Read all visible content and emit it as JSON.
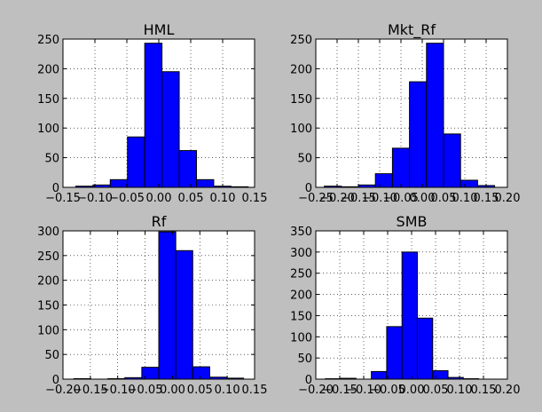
{
  "chart_data": [
    {
      "type": "bar",
      "title": "HML",
      "bin_edges": [
        -0.13,
        -0.103,
        -0.076,
        -0.049,
        -0.022,
        0.005,
        0.032,
        0.059,
        0.086,
        0.113,
        0.14
      ],
      "values": [
        2,
        4,
        13,
        85,
        243,
        195,
        62,
        13,
        2,
        1
      ],
      "xlim": [
        -0.15,
        0.15
      ],
      "ylim": [
        0,
        250
      ],
      "xticks": [
        "−0.15",
        "−0.10",
        "−0.05",
        "0.00",
        "0.05",
        "0.10",
        "0.15"
      ],
      "yticks": [
        "0",
        "50",
        "100",
        "150",
        "200",
        "250"
      ],
      "xtick_values": [
        -0.15,
        -0.1,
        -0.05,
        0.0,
        0.05,
        0.1,
        0.15
      ],
      "ytick_values": [
        0,
        50,
        100,
        150,
        200,
        250
      ],
      "grid": true,
      "bar_color": "#0000ff"
    },
    {
      "type": "bar",
      "title": "Mkt_Rf",
      "bin_edges": [
        -0.23,
        -0.19,
        -0.15,
        -0.11,
        -0.07,
        -0.03,
        0.01,
        0.05,
        0.09,
        0.13,
        0.17
      ],
      "values": [
        2,
        1,
        4,
        23,
        66,
        178,
        243,
        90,
        12,
        3
      ],
      "xlim": [
        -0.25,
        0.2
      ],
      "ylim": [
        0,
        250
      ],
      "xticks": [
        "−0.25",
        "−0.20",
        "−0.15",
        "−0.10",
        "−0.05",
        "0.00",
        "0.05",
        "0.10",
        "0.15",
        "0.20"
      ],
      "yticks": [
        "0",
        "50",
        "100",
        "150",
        "200",
        "250"
      ],
      "xtick_values": [
        -0.25,
        -0.2,
        -0.15,
        -0.1,
        -0.05,
        0.0,
        0.05,
        0.1,
        0.15,
        0.2
      ],
      "ytick_values": [
        0,
        50,
        100,
        150,
        200,
        250
      ],
      "grid": true,
      "bar_color": "#0000ff"
    },
    {
      "type": "bar",
      "title": "Rf",
      "bin_edges": [
        -0.18,
        -0.149,
        -0.118,
        -0.087,
        -0.056,
        -0.025,
        0.006,
        0.037,
        0.068,
        0.099,
        0.13
      ],
      "values": [
        1,
        0,
        1,
        3,
        24,
        298,
        260,
        25,
        4,
        2
      ],
      "xlim": [
        -0.2,
        0.15
      ],
      "ylim": [
        0,
        300
      ],
      "xticks": [
        "−0.20",
        "−0.15",
        "−0.10",
        "−0.05",
        "0.00",
        "0.05",
        "0.10",
        "0.15"
      ],
      "yticks": [
        "0",
        "50",
        "100",
        "150",
        "200",
        "250",
        "300"
      ],
      "xtick_values": [
        -0.2,
        -0.15,
        -0.1,
        -0.05,
        0.0,
        0.05,
        0.1,
        0.15
      ],
      "ytick_values": [
        0,
        50,
        100,
        150,
        200,
        250,
        300
      ],
      "grid": true,
      "bar_color": "#0000ff"
    },
    {
      "type": "bar",
      "title": "SMB",
      "bin_edges": [
        -0.18,
        -0.148,
        -0.116,
        -0.084,
        -0.052,
        -0.02,
        0.012,
        0.044,
        0.076,
        0.108,
        0.14
      ],
      "values": [
        1,
        2,
        0,
        18,
        124,
        300,
        144,
        20,
        4,
        1
      ],
      "xlim": [
        -0.2,
        0.2
      ],
      "ylim": [
        0,
        350
      ],
      "xticks": [
        "−0.20",
        "−0.15",
        "−0.10",
        "−0.05",
        "0.00",
        "0.05",
        "0.10",
        "0.15",
        "0.20"
      ],
      "yticks": [
        "0",
        "50",
        "100",
        "150",
        "200",
        "250",
        "300",
        "350"
      ],
      "xtick_values": [
        -0.2,
        -0.15,
        -0.1,
        -0.05,
        0.0,
        0.05,
        0.1,
        0.15,
        0.2
      ],
      "ytick_values": [
        0,
        50,
        100,
        150,
        200,
        250,
        300,
        350
      ],
      "grid": true,
      "bar_color": "#0000ff"
    }
  ]
}
